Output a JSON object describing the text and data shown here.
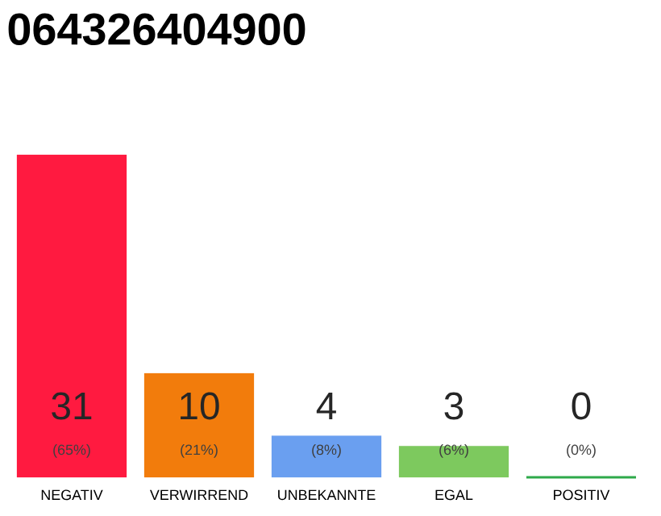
{
  "chart_data": {
    "type": "bar",
    "title": "064326404900",
    "categories": [
      "NEGATIV",
      "VERWIRREND",
      "UNBEKANNTE",
      "EGAL",
      "POSITIV"
    ],
    "values": [
      31,
      10,
      4,
      3,
      0
    ],
    "colors": [
      "#ff1a40",
      "#f27c0c",
      "#6a9ff0",
      "#7dc95e",
      "#2eaa4a"
    ],
    "data_labels": true,
    "annotations": [
      "(65%)",
      "(21%)",
      "(8%)",
      "(6%)",
      "(0%)"
    ]
  }
}
